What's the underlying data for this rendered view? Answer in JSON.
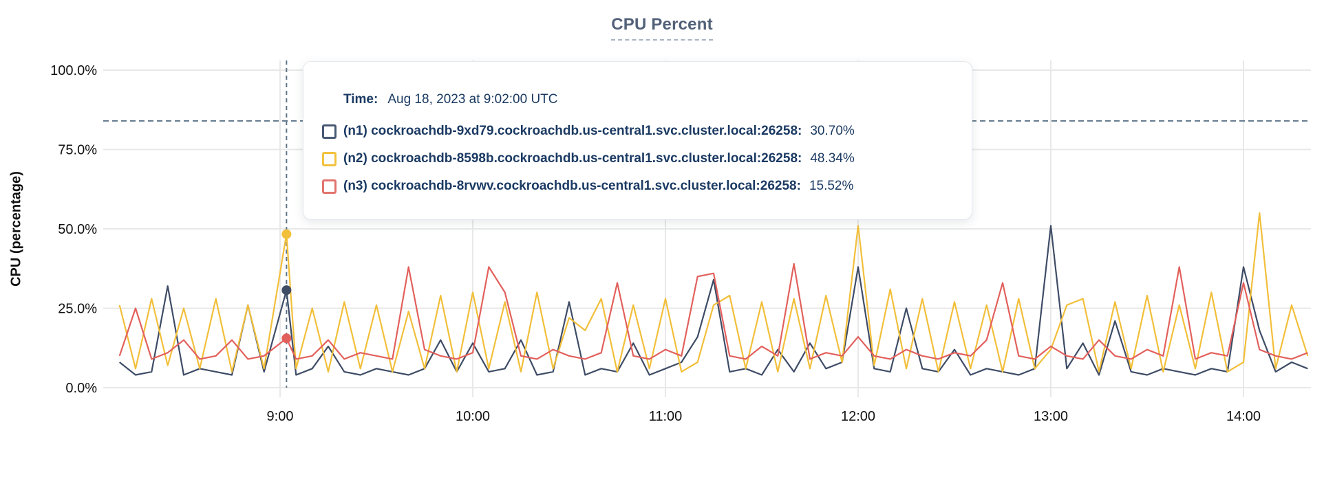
{
  "title": "CPU Percent",
  "y_axis_label": "CPU (percentage)",
  "tooltip": {
    "time_label": "Time:",
    "time_value": "Aug 18, 2023 at 9:02:00 UTC",
    "rows": [
      {
        "node": "n1",
        "label": "(n1) cockroachdb-9xd79.cockroachdb.us-central1.svc.cluster.local:26258:",
        "value": "30.70%",
        "color": "#475872"
      },
      {
        "node": "n2",
        "label": "(n2) cockroachdb-8598b.cockroachdb.us-central1.svc.cluster.local:26258:",
        "value": "48.34%",
        "color": "#f2c23e"
      },
      {
        "node": "n3",
        "label": "(n3) cockroachdb-8rvwv.cockroachdb.us-central1.svc.cluster.local:26258:",
        "value": "15.52%",
        "color": "#e2736c"
      }
    ]
  },
  "colors": {
    "grid": "#e8e8e8",
    "dashed_guides": "#5e7589",
    "axis_text": "#111111",
    "title_text": "#526179",
    "tooltip_text": "#1b3a63"
  },
  "chart_data": {
    "type": "line",
    "title": "CPU Percent",
    "xlabel": "",
    "ylabel": "CPU (percentage)",
    "ylim": [
      0,
      100
    ],
    "grid": true,
    "legend_position": "tooltip-overlay",
    "y_ticks": [
      {
        "value": 0,
        "label": "0.0%"
      },
      {
        "value": 25,
        "label": "25.0%"
      },
      {
        "value": 50,
        "label": "50.0%"
      },
      {
        "value": 75,
        "label": "75.0%"
      },
      {
        "value": 100,
        "label": "100.0%"
      }
    ],
    "x_ticks": [
      {
        "minutes": 540,
        "label": "9:00"
      },
      {
        "minutes": 600,
        "label": "10:00"
      },
      {
        "minutes": 660,
        "label": "11:00"
      },
      {
        "minutes": 720,
        "label": "12:00"
      },
      {
        "minutes": 780,
        "label": "13:00"
      },
      {
        "minutes": 840,
        "label": "14:00"
      }
    ],
    "x_start_minutes": 490,
    "x_step_minutes": 5,
    "threshold_percent": 84,
    "hover": {
      "time": "9:02",
      "x_minutes": 542,
      "values": {
        "n1": 30.7,
        "n2": 48.34,
        "n3": 15.52
      }
    },
    "series": [
      {
        "id": "n1",
        "name": "cockroachdb-9xd79.cockroachdb.us-central1.svc.cluster.local:26258",
        "color": "#3e4c66",
        "hover_value": 30.7,
        "values": [
          8,
          4,
          5,
          32,
          4,
          6,
          5,
          4,
          26,
          5,
          30.7,
          4,
          6,
          13,
          5,
          4,
          6,
          5,
          4,
          6,
          15,
          5,
          14,
          5,
          6,
          15,
          4,
          5,
          27,
          4,
          6,
          5,
          14,
          4,
          6,
          8,
          16,
          34,
          5,
          6,
          4,
          12,
          5,
          14,
          6,
          8,
          38,
          6,
          5,
          25,
          6,
          5,
          12,
          4,
          6,
          5,
          4,
          6,
          51,
          6,
          14,
          4,
          21,
          5,
          4,
          6,
          5,
          4,
          6,
          5,
          38,
          18,
          5,
          8,
          6
        ]
      },
      {
        "id": "n2",
        "name": "cockroachdb-8598b.cockroachdb.us-central1.svc.cluster.local:26258",
        "color": "#f2bf3a",
        "hover_value": 48.34,
        "values": [
          26,
          6,
          28,
          7,
          25,
          6,
          28,
          5,
          26,
          6,
          48.34,
          6,
          25,
          5,
          27,
          6,
          26,
          5,
          24,
          6,
          29,
          5,
          30,
          6,
          27,
          5,
          30,
          6,
          22,
          18,
          28,
          5,
          26,
          6,
          28,
          5,
          8,
          26,
          29,
          6,
          27,
          5,
          28,
          6,
          29,
          8,
          51,
          7,
          31,
          6,
          28,
          5,
          27,
          6,
          26,
          5,
          28,
          6,
          12,
          26,
          28,
          5,
          27,
          6,
          29,
          5,
          26,
          6,
          30,
          5,
          8,
          55,
          6,
          26,
          10
        ]
      },
      {
        "id": "n3",
        "name": "cockroachdb-8rvwv.cockroachdb.us-central1.svc.cluster.local:26258",
        "color": "#e2605c",
        "hover_value": 15.52,
        "values": [
          10,
          25,
          9,
          11,
          15,
          9,
          10,
          15,
          9,
          10,
          15.52,
          9,
          10,
          15,
          9,
          11,
          10,
          9,
          38,
          12,
          10,
          9,
          11,
          38,
          30,
          10,
          9,
          12,
          10,
          9,
          11,
          33,
          10,
          9,
          12,
          10,
          35,
          36,
          10,
          9,
          13,
          10,
          39,
          9,
          11,
          10,
          16,
          10,
          9,
          12,
          10,
          9,
          11,
          10,
          15,
          33,
          10,
          9,
          13,
          10,
          9,
          15,
          10,
          9,
          12,
          10,
          38,
          9,
          11,
          10,
          33,
          12,
          10,
          9,
          11
        ]
      }
    ]
  }
}
